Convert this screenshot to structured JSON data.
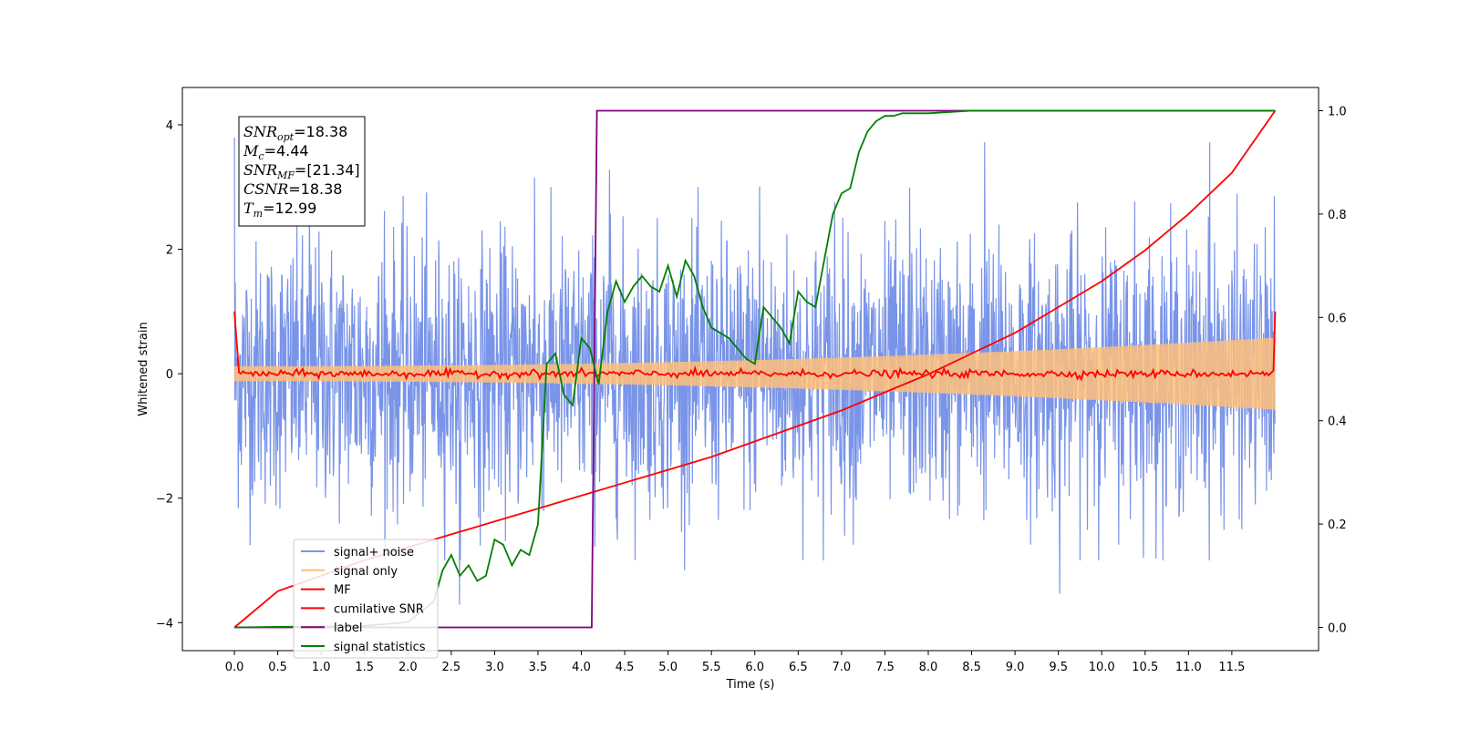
{
  "chart_data": {
    "type": "line",
    "title": "",
    "xlabel": "Time (s)",
    "ylabel": "Whitened strain",
    "xlim": [
      -0.6,
      12.5
    ],
    "ylim": [
      -4.45,
      4.6
    ],
    "y2lim": [
      -0.045,
      1.045
    ],
    "x_ticks": [
      "0.0",
      "0.5",
      "1.0",
      "1.5",
      "2.0",
      "2.5",
      "3.0",
      "3.5",
      "4.0",
      "4.5",
      "5.0",
      "5.5",
      "6.0",
      "6.5",
      "7.0",
      "7.5",
      "8.0",
      "8.5",
      "9.0",
      "9.5",
      "10.0",
      "10.5",
      "11.0",
      "11.5"
    ],
    "y_ticks": [
      "−4",
      "−2",
      "0",
      "2",
      "4"
    ],
    "y2_ticks": [
      "0.0",
      "0.2",
      "0.4",
      "0.6",
      "0.8",
      "1.0"
    ],
    "grid": false,
    "legend_position": "lower-left",
    "annotation": [
      {
        "main": "SNR",
        "sub": "opt",
        "value": "=18.38"
      },
      {
        "main": "M",
        "sub": "c",
        "value": "=4.44"
      },
      {
        "main": "SNR",
        "sub": "MF",
        "value": "=[21.34]"
      },
      {
        "main": "CSNR",
        "sub": "",
        "value": "=18.38"
      },
      {
        "main": "T",
        "sub": "m",
        "value": "=12.99"
      }
    ],
    "series": [
      {
        "name": "signal+ noise",
        "color": "#7994e8",
        "kind": "noise",
        "x_range": [
          0,
          12
        ],
        "amplitude_range": [
          -3.0,
          3.0
        ]
      },
      {
        "name": "signal only",
        "color": "#ffc07a",
        "kind": "chirp",
        "x_range": [
          0,
          12
        ],
        "envelope_start": 0.12,
        "envelope_end": 0.58
      },
      {
        "name": "MF",
        "color": "#ff0000",
        "kind": "mf",
        "x_range": [
          0,
          12
        ],
        "start_value": 1.0,
        "end_value": 1.0
      },
      {
        "name": "cumilative SNR",
        "color": "#ff0000",
        "axis": "right",
        "x": [
          0,
          0.5,
          1,
          1.5,
          2,
          2.5,
          3,
          3.5,
          4,
          4.5,
          5,
          5.5,
          6,
          6.5,
          7,
          7.5,
          8,
          8.5,
          9,
          9.5,
          10,
          10.5,
          11,
          11.5,
          12
        ],
        "y": [
          0.0,
          0.07,
          0.1,
          0.13,
          0.155,
          0.18,
          0.205,
          0.23,
          0.255,
          0.28,
          0.305,
          0.33,
          0.36,
          0.39,
          0.42,
          0.455,
          0.49,
          0.53,
          0.57,
          0.62,
          0.67,
          0.73,
          0.8,
          0.88,
          1.0
        ]
      },
      {
        "name": "label",
        "color": "#800080",
        "axis": "right",
        "x": [
          0,
          4.12,
          4.18,
          12
        ],
        "y": [
          0.0,
          0.0,
          1.0,
          1.0
        ]
      },
      {
        "name": "signal statistics",
        "color": "#008000",
        "axis": "right",
        "x": [
          0,
          0.5,
          1,
          1.5,
          2,
          2.3,
          2.4,
          2.5,
          2.6,
          2.7,
          2.8,
          2.9,
          3.0,
          3.1,
          3.2,
          3.3,
          3.4,
          3.5,
          3.6,
          3.7,
          3.8,
          3.9,
          4.0,
          4.1,
          4.2,
          4.3,
          4.4,
          4.5,
          4.6,
          4.7,
          4.8,
          4.9,
          5.0,
          5.1,
          5.2,
          5.3,
          5.4,
          5.5,
          5.6,
          5.7,
          5.8,
          5.9,
          6.0,
          6.1,
          6.2,
          6.3,
          6.4,
          6.5,
          6.6,
          6.7,
          6.8,
          6.9,
          7.0,
          7.1,
          7.2,
          7.3,
          7.4,
          7.5,
          7.6,
          7.7,
          8.0,
          8.5,
          9.0,
          9.5,
          10.0,
          11.0,
          12.0
        ],
        "y": [
          0.0,
          0.001,
          0.002,
          0.003,
          0.01,
          0.05,
          0.11,
          0.14,
          0.1,
          0.12,
          0.09,
          0.1,
          0.17,
          0.16,
          0.12,
          0.15,
          0.14,
          0.2,
          0.51,
          0.53,
          0.45,
          0.43,
          0.56,
          0.54,
          0.47,
          0.61,
          0.67,
          0.63,
          0.66,
          0.68,
          0.66,
          0.65,
          0.7,
          0.64,
          0.71,
          0.68,
          0.62,
          0.58,
          0.57,
          0.56,
          0.54,
          0.52,
          0.51,
          0.62,
          0.6,
          0.58,
          0.55,
          0.65,
          0.63,
          0.62,
          0.71,
          0.8,
          0.84,
          0.85,
          0.92,
          0.96,
          0.98,
          0.99,
          0.99,
          0.995,
          0.995,
          1.0,
          1.0,
          1.0,
          1.0,
          1.0,
          1.0
        ]
      }
    ]
  }
}
